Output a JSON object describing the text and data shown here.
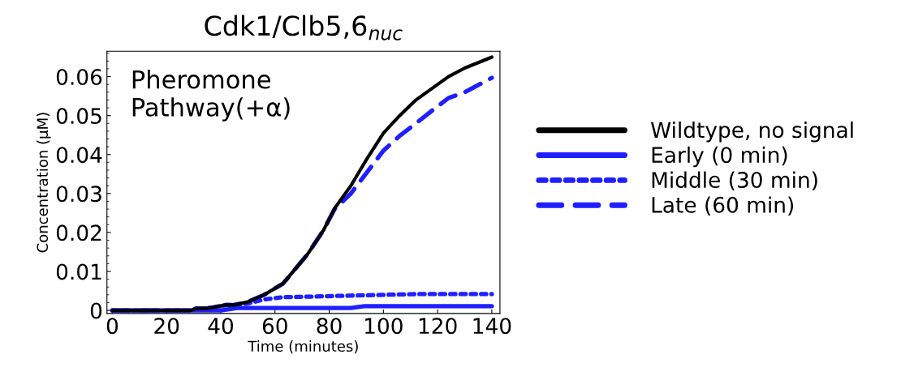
{
  "chart_data": {
    "type": "line",
    "title": "Cdk1/Clb5,6$_{nuc}$",
    "xlabel": "Time (minutes)",
    "ylabel": "Concentration (µM)",
    "annotations": [
      "Pheromone\nPathway(+α)"
    ],
    "xlim": [
      -2,
      143
    ],
    "xticks": [
      0,
      20,
      40,
      60,
      80,
      100,
      120,
      140
    ],
    "ylim": [
      -0.0008,
      0.0665
    ],
    "yticks": [
      0,
      0.01,
      0.02,
      0.03,
      0.04,
      0.05,
      0.06
    ],
    "grid": false,
    "legend": "right",
    "marker": "none",
    "series": [
      {
        "name": "Wildtype, no signal",
        "color": "#000000",
        "line_style": "solid",
        "x": [
          0,
          29,
          31,
          35,
          42,
          45,
          50,
          56,
          63,
          72,
          78,
          82,
          88,
          94,
          100,
          106,
          112,
          124,
          130,
          140
        ],
        "values": [
          0,
          0,
          0.0005,
          0.0005,
          0.0014,
          0.0014,
          0.0022,
          0.004,
          0.0069,
          0.0144,
          0.0207,
          0.0262,
          0.032,
          0.039,
          0.0455,
          0.05,
          0.054,
          0.06,
          0.0622,
          0.065
        ]
      },
      {
        "name": "Early (0 min)",
        "color": "#1f1fff",
        "line_style": "solid",
        "x": [
          0,
          40,
          46,
          88,
          93,
          140
        ],
        "values": [
          0,
          0,
          0.0006,
          0.0006,
          0.0011,
          0.0011
        ]
      },
      {
        "name": "Middle (30 min)",
        "color": "#1f1fff",
        "line_style": "dotted",
        "x": [
          0,
          29,
          31,
          35,
          42,
          45,
          50,
          56,
          63,
          71,
          88,
          113,
          140
        ],
        "values": [
          0,
          0,
          0.0005,
          0.0005,
          0.0014,
          0.0014,
          0.0018,
          0.0028,
          0.0034,
          0.0035,
          0.0038,
          0.0042,
          0.0042
        ]
      },
      {
        "name": "Late (60 min)",
        "color": "#1f1fff",
        "line_style": "dashed",
        "x": [
          0,
          29,
          31,
          35,
          42,
          45,
          50,
          56,
          63,
          72,
          78,
          82,
          88,
          94,
          100,
          106,
          112,
          118,
          124,
          130,
          140
        ],
        "values": [
          0,
          0,
          0.0005,
          0.0005,
          0.0014,
          0.0014,
          0.0022,
          0.004,
          0.0069,
          0.0144,
          0.0207,
          0.026,
          0.03,
          0.0355,
          0.041,
          0.0448,
          0.048,
          0.0513,
          0.0545,
          0.056,
          0.0597
        ]
      }
    ]
  }
}
